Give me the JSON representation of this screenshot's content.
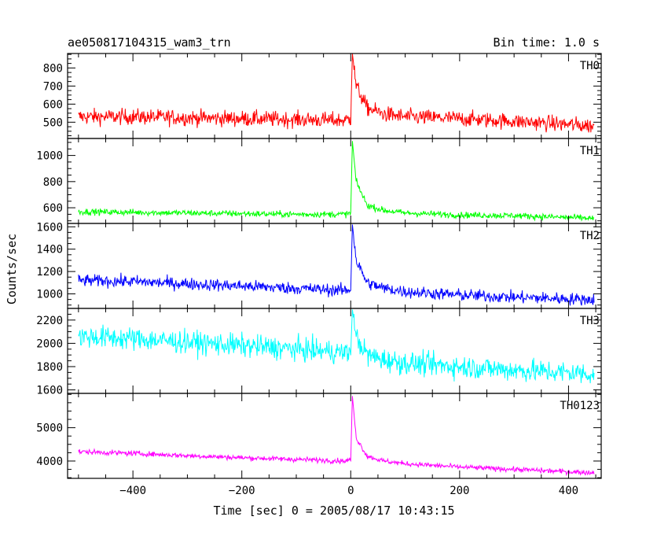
{
  "header": {
    "title": "ae050817104315_wam3_trn",
    "bin_time": "Bin time: 1.0 s"
  },
  "ylabel": "Counts/sec",
  "xlabel": "Time [sec] 0 = 2005/08/17 10:43:15",
  "chart_data": [
    {
      "type": "line",
      "name": "TH0",
      "color": "#ff0000",
      "xlim": [
        -520,
        460
      ],
      "ylim": [
        410,
        880
      ],
      "yticks": [
        500,
        600,
        700,
        800
      ],
      "ytick_labels": [
        "500",
        "600",
        "700",
        "800"
      ],
      "xticks": [
        -400,
        -200,
        0,
        200,
        400
      ],
      "series_profile": {
        "x": [
          -500,
          -400,
          -300,
          -200,
          -100,
          -10,
          0,
          3,
          10,
          30,
          60,
          100,
          200,
          300,
          440
        ],
        "y": [
          530,
          530,
          525,
          520,
          515,
          510,
          520,
          880,
          700,
          580,
          545,
          530,
          520,
          505,
          480
        ]
      },
      "noise_amplitude": 40
    },
    {
      "type": "line",
      "name": "TH1",
      "color": "#00ff00",
      "xlim": [
        -520,
        460
      ],
      "ylim": [
        480,
        1130
      ],
      "yticks": [
        600,
        800,
        1000
      ],
      "ytick_labels": [
        "600",
        "800",
        "1000"
      ],
      "xticks": [
        -400,
        -200,
        0,
        200,
        400
      ],
      "series_profile": {
        "x": [
          -500,
          -400,
          -300,
          -200,
          -100,
          -10,
          0,
          3,
          10,
          30,
          60,
          100,
          200,
          300,
          440
        ],
        "y": [
          570,
          565,
          560,
          555,
          550,
          550,
          560,
          1110,
          800,
          620,
          580,
          560,
          545,
          540,
          520
        ]
      },
      "noise_amplitude": 22
    },
    {
      "type": "line",
      "name": "TH2",
      "color": "#0000ff",
      "xlim": [
        -520,
        460
      ],
      "ylim": [
        870,
        1630
      ],
      "yticks": [
        1000,
        1200,
        1400,
        1600
      ],
      "ytick_labels": [
        "1000",
        "1200",
        "1400",
        "1600"
      ],
      "xticks": [
        -400,
        -200,
        0,
        200,
        400
      ],
      "series_profile": {
        "x": [
          -500,
          -400,
          -300,
          -200,
          -100,
          -10,
          0,
          3,
          10,
          30,
          60,
          100,
          200,
          300,
          440
        ],
        "y": [
          1120,
          1110,
          1090,
          1070,
          1050,
          1030,
          1040,
          1620,
          1300,
          1100,
          1050,
          1020,
          990,
          970,
          950
        ]
      },
      "noise_amplitude": 50
    },
    {
      "type": "line",
      "name": "TH3",
      "color": "#00ffff",
      "xlim": [
        -520,
        460
      ],
      "ylim": [
        1570,
        2300
      ],
      "yticks": [
        1600,
        1800,
        2000,
        2200
      ],
      "ytick_labels": [
        "1600",
        "1800",
        "2000",
        "2200"
      ],
      "xticks": [
        -400,
        -200,
        0,
        200,
        400
      ],
      "series_profile": {
        "x": [
          -500,
          -400,
          -300,
          -200,
          -100,
          -10,
          0,
          3,
          10,
          30,
          60,
          100,
          200,
          300,
          440
        ],
        "y": [
          2060,
          2040,
          2010,
          1980,
          1950,
          1920,
          1930,
          2290,
          2050,
          1900,
          1860,
          1830,
          1800,
          1770,
          1740
        ]
      },
      "noise_amplitude": 90
    },
    {
      "type": "line",
      "name": "TH0123",
      "color": "#ff00ff",
      "xlim": [
        -520,
        460
      ],
      "ylim": [
        3480,
        6030
      ],
      "yticks": [
        4000,
        5000
      ],
      "ytick_labels": [
        "4000",
        "5000"
      ],
      "xticks": [
        -400,
        -200,
        0,
        200,
        400
      ],
      "xtick_labels": [
        "−400",
        "−200",
        "0",
        "200",
        "400"
      ],
      "series_profile": {
        "x": [
          -500,
          -400,
          -300,
          -200,
          -100,
          -10,
          0,
          3,
          10,
          30,
          60,
          100,
          200,
          300,
          440
        ],
        "y": [
          4280,
          4230,
          4160,
          4100,
          4050,
          4000,
          4050,
          5950,
          4700,
          4150,
          4000,
          3920,
          3820,
          3750,
          3650
        ]
      },
      "noise_amplitude": 70
    }
  ]
}
